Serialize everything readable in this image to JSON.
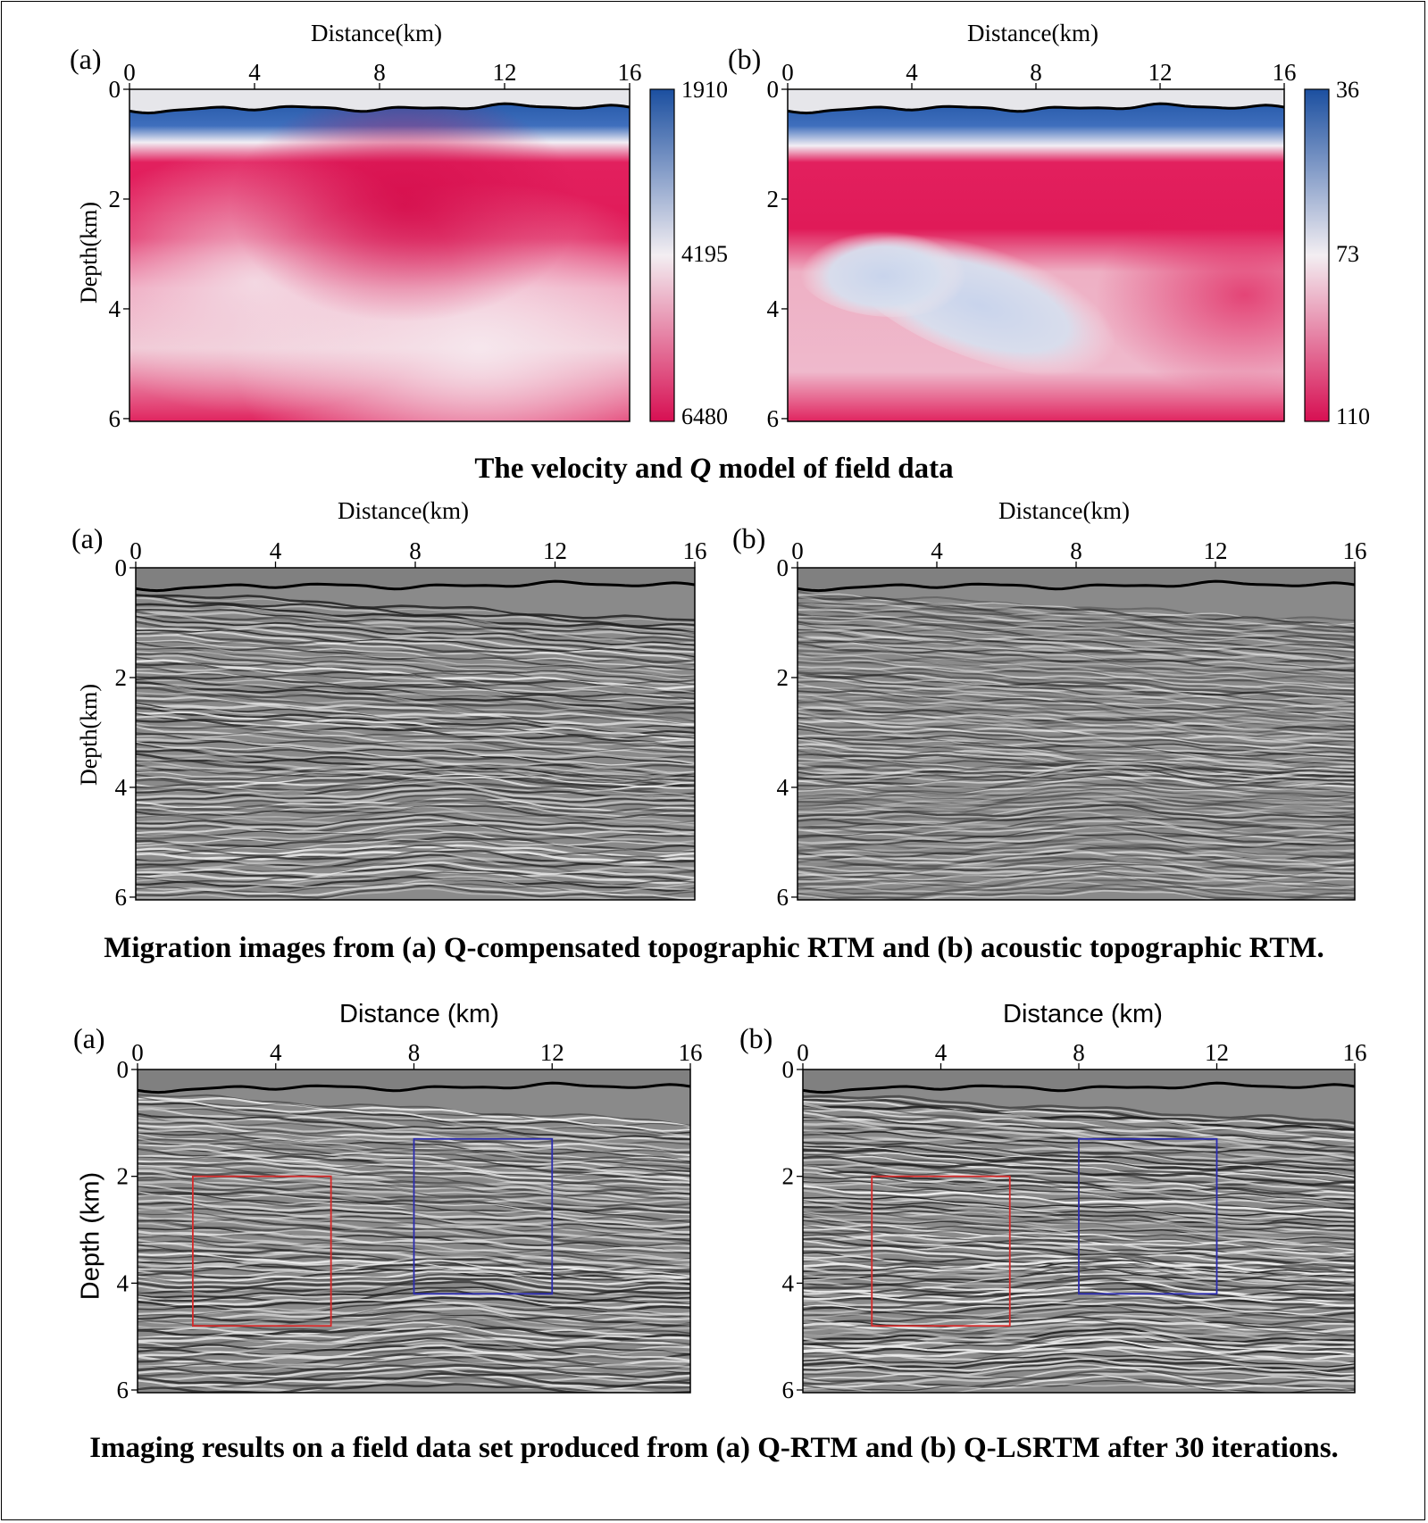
{
  "figures": [
    {
      "caption": "The velocity and Q model of field data",
      "caption_pre": "The velocity and ",
      "caption_italic": "Q",
      "caption_post": " model of field data",
      "panels": [
        {
          "label": "(a)",
          "xlabel": "Distance(km)",
          "ylabel": "Depth(km)",
          "xticks": [
            "0",
            "4",
            "8",
            "12",
            "16"
          ],
          "yticks": [
            "0",
            "2",
            "4",
            "6"
          ],
          "colorbar": {
            "ticks": [
              "1910",
              "4195",
              "6480"
            ]
          },
          "image": "velocity model"
        },
        {
          "label": "(b)",
          "xlabel": "Distance(km)",
          "ylabel": "",
          "xticks": [
            "0",
            "4",
            "8",
            "12",
            "16"
          ],
          "yticks": [
            "0",
            "2",
            "4",
            "6"
          ],
          "colorbar": {
            "ticks": [
              "36",
              "73",
              "110"
            ]
          },
          "image": "Q model"
        }
      ]
    },
    {
      "caption": "Migration images from (a) Q-compensated topographic RTM and (b) acoustic topographic RTM.",
      "panels": [
        {
          "label": "(a)",
          "xlabel": "Distance(km)",
          "ylabel": "Depth(km)",
          "xticks": [
            "0",
            "4",
            "8",
            "12",
            "16"
          ],
          "yticks": [
            "0",
            "2",
            "4",
            "6"
          ],
          "image": "Q-compensated topographic RTM image"
        },
        {
          "label": "(b)",
          "xlabel": "Distance(km)",
          "ylabel": "",
          "xticks": [
            "0",
            "4",
            "8",
            "12",
            "16"
          ],
          "yticks": [
            "0",
            "2",
            "4",
            "6"
          ],
          "image": "acoustic topographic RTM image"
        }
      ]
    },
    {
      "caption": "Imaging results on a field data set produced from (a) Q-RTM and (b) Q-LSRTM after 30 iterations.",
      "panels": [
        {
          "label": "(a)",
          "xlabel": "Distance (km)",
          "ylabel": "Depth (km)",
          "xticks": [
            "0",
            "4",
            "8",
            "12",
            "16"
          ],
          "yticks": [
            "0",
            "2",
            "4",
            "6"
          ],
          "image": "Q-RTM image",
          "highlight_boxes": [
            {
              "color": "#d62a2a",
              "x_km": [
                1.6,
                5.6
              ],
              "depth_km": [
                2.0,
                4.8
              ]
            },
            {
              "color": "#2b2bb0",
              "x_km": [
                8.0,
                12.0
              ],
              "depth_km": [
                1.3,
                4.2
              ]
            }
          ]
        },
        {
          "label": "(b)",
          "xlabel": "Distance (km)",
          "ylabel": "",
          "xticks": [
            "0",
            "4",
            "8",
            "12",
            "16"
          ],
          "yticks": [
            "0",
            "2",
            "4",
            "6"
          ],
          "image": "Q-LSRTM image",
          "highlight_boxes": [
            {
              "color": "#d62a2a",
              "x_km": [
                2.0,
                6.0
              ],
              "depth_km": [
                2.0,
                4.8
              ]
            },
            {
              "color": "#2b2bb0",
              "x_km": [
                8.0,
                12.0
              ],
              "depth_km": [
                1.3,
                4.2
              ]
            }
          ]
        }
      ]
    }
  ]
}
